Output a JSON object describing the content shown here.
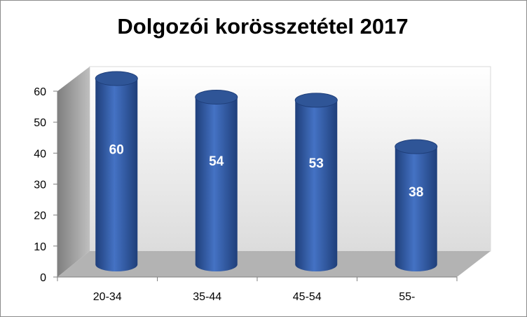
{
  "title": "Dolgozói korösszetétel 2017",
  "chart_data": {
    "type": "bar",
    "style": "3d-cylinder",
    "title": "Dolgozói korösszetétel 2017",
    "categories": [
      "20-34",
      "35-44",
      "45-54",
      "55-"
    ],
    "values": [
      60,
      54,
      53,
      38
    ],
    "data_labels": [
      "60",
      "54",
      "53",
      "38"
    ],
    "ylim": [
      0,
      60
    ],
    "yticks": [
      "0",
      "10",
      "20",
      "30",
      "40",
      "50",
      "60"
    ],
    "xlabel": "",
    "ylabel": "",
    "grid": false,
    "legend": "none",
    "colors": {
      "bar": "#4472C4",
      "bar_dark": "#1f3f7a",
      "wall": "#f3f3f3",
      "side_wall": "#a6a6a6",
      "floor": "#b3b3b3"
    }
  }
}
